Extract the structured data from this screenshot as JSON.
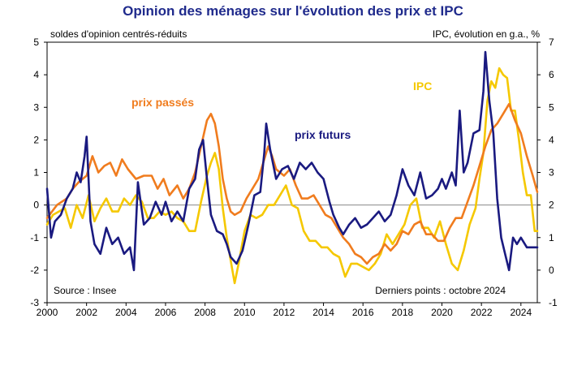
{
  "chart_data": {
    "type": "line",
    "title": "Opinion des ménages sur l'évolution des prix et IPC",
    "ylabel_left": "soldes d'opinion centrés-réduits",
    "ylabel_right": "IPC, évolution en g.a., %",
    "source": "Source : Insee",
    "last_point_note": "Derniers points : octobre 2024",
    "ylim_left": [
      -3,
      5
    ],
    "ylim_right": [
      -1,
      7
    ],
    "xlim": [
      2000,
      2024.83
    ],
    "x_ticks": [
      "2000",
      "2002",
      "2004",
      "2006",
      "2008",
      "2010",
      "2012",
      "2014",
      "2016",
      "2018",
      "2020",
      "2022",
      "2024"
    ],
    "y_ticks_left": [
      "5",
      "4",
      "3",
      "2",
      "1",
      "0",
      "-1",
      "-2",
      "-3"
    ],
    "y_ticks_right": [
      "7",
      "6",
      "5",
      "4",
      "3",
      "2",
      "1",
      "0",
      "-1"
    ],
    "colors": {
      "title": "#1f2a8c",
      "prix_passes": "#f07c1e",
      "prix_futurs": "#1a1a80",
      "ipc": "#f5c800"
    },
    "series": [
      {
        "name": "prix passés",
        "axis": "left",
        "x": [
          2000.0,
          2000.5,
          2001.0,
          2001.3,
          2001.6,
          2002.0,
          2002.3,
          2002.6,
          2002.9,
          2003.2,
          2003.5,
          2003.8,
          2004.1,
          2004.5,
          2004.9,
          2005.3,
          2005.6,
          2005.9,
          2006.2,
          2006.6,
          2006.9,
          2007.2,
          2007.5,
          2007.8,
          2008.1,
          2008.3,
          2008.5,
          2008.7,
          2008.9,
          2009.1,
          2009.3,
          2009.5,
          2009.8,
          2010.1,
          2010.4,
          2010.7,
          2011.0,
          2011.2,
          2011.4,
          2011.6,
          2011.8,
          2012.0,
          2012.3,
          2012.6,
          2012.9,
          2013.2,
          2013.5,
          2013.8,
          2014.1,
          2014.4,
          2014.7,
          2015.0,
          2015.3,
          2015.6,
          2015.9,
          2016.2,
          2016.5,
          2016.8,
          2017.1,
          2017.4,
          2017.7,
          2018.0,
          2018.3,
          2018.6,
          2018.9,
          2019.2,
          2019.5,
          2019.8,
          2020.1,
          2020.4,
          2020.7,
          2021.0,
          2021.3,
          2021.6,
          2021.9,
          2022.2,
          2022.5,
          2022.8,
          2023.1,
          2023.4,
          2023.7,
          2024.0,
          2024.3,
          2024.6,
          2024.83
        ],
        "values": [
          -0.4,
          0.0,
          0.2,
          0.5,
          0.7,
          0.9,
          1.5,
          1.0,
          1.2,
          1.3,
          0.9,
          1.4,
          1.1,
          0.8,
          0.9,
          0.9,
          0.5,
          0.8,
          0.3,
          0.6,
          0.2,
          0.5,
          1.0,
          1.8,
          2.6,
          2.8,
          2.5,
          1.8,
          0.8,
          0.2,
          -0.2,
          -0.3,
          -0.2,
          0.2,
          0.5,
          0.8,
          1.4,
          1.8,
          1.5,
          1.1,
          1.0,
          0.9,
          1.1,
          0.6,
          0.2,
          0.2,
          0.3,
          0.0,
          -0.3,
          -0.4,
          -0.7,
          -1.0,
          -1.2,
          -1.5,
          -1.6,
          -1.8,
          -1.6,
          -1.5,
          -1.2,
          -1.4,
          -1.2,
          -0.8,
          -0.9,
          -0.6,
          -0.5,
          -0.9,
          -0.9,
          -1.1,
          -1.1,
          -0.7,
          -0.4,
          -0.4,
          0.1,
          0.6,
          1.2,
          1.8,
          2.3,
          2.5,
          2.8,
          3.1,
          2.6,
          2.2,
          1.5,
          0.9,
          0.4
        ]
      },
      {
        "name": "prix futurs",
        "axis": "left",
        "x": [
          2000.0,
          2000.2,
          2000.4,
          2000.7,
          2001.0,
          2001.3,
          2001.5,
          2001.7,
          2001.9,
          2002.0,
          2002.2,
          2002.4,
          2002.7,
          2003.0,
          2003.3,
          2003.6,
          2003.9,
          2004.2,
          2004.4,
          2004.6,
          2004.9,
          2005.2,
          2005.5,
          2005.8,
          2006.0,
          2006.3,
          2006.6,
          2006.9,
          2007.2,
          2007.5,
          2007.7,
          2007.9,
          2008.1,
          2008.3,
          2008.6,
          2008.9,
          2009.1,
          2009.3,
          2009.6,
          2009.9,
          2010.2,
          2010.5,
          2010.8,
          2011.0,
          2011.1,
          2011.3,
          2011.6,
          2011.9,
          2012.2,
          2012.5,
          2012.8,
          2013.1,
          2013.4,
          2013.7,
          2014.0,
          2014.3,
          2014.5,
          2014.8,
          2015.0,
          2015.3,
          2015.6,
          2015.9,
          2016.2,
          2016.5,
          2016.8,
          2017.1,
          2017.4,
          2017.7,
          2018.0,
          2018.3,
          2018.6,
          2018.9,
          2019.2,
          2019.5,
          2019.8,
          2020.0,
          2020.2,
          2020.5,
          2020.7,
          2020.9,
          2021.1,
          2021.3,
          2021.6,
          2021.9,
          2022.1,
          2022.2,
          2022.4,
          2022.6,
          2022.8,
          2023.0,
          2023.2,
          2023.4,
          2023.6,
          2023.8,
          2024.0,
          2024.3,
          2024.6,
          2024.83
        ],
        "values": [
          0.5,
          -1.0,
          -0.5,
          -0.3,
          0.2,
          0.5,
          1.0,
          0.7,
          1.5,
          2.1,
          -0.5,
          -1.2,
          -1.5,
          -0.7,
          -1.2,
          -1.0,
          -1.5,
          -1.3,
          -2.0,
          0.7,
          -0.6,
          -0.4,
          0.1,
          -0.3,
          0.1,
          -0.5,
          -0.2,
          -0.5,
          0.5,
          0.8,
          1.7,
          2.0,
          0.8,
          -0.3,
          -0.8,
          -0.9,
          -1.2,
          -1.6,
          -1.8,
          -1.4,
          -0.6,
          0.3,
          0.4,
          1.6,
          2.5,
          1.7,
          0.8,
          1.1,
          1.2,
          0.8,
          1.3,
          1.1,
          1.3,
          1.0,
          0.8,
          0.1,
          -0.3,
          -0.7,
          -0.9,
          -0.6,
          -0.4,
          -0.7,
          -0.6,
          -0.4,
          -0.2,
          -0.5,
          -0.3,
          0.3,
          1.1,
          0.6,
          0.3,
          1.0,
          0.2,
          0.3,
          0.5,
          0.8,
          0.5,
          1.0,
          0.6,
          2.9,
          1.0,
          1.3,
          2.2,
          2.3,
          3.5,
          4.7,
          3.2,
          2.2,
          0.2,
          -1.0,
          -1.5,
          -2.0,
          -1.0,
          -1.2,
          -1.0,
          -1.3,
          -1.3,
          -1.3
        ]
      },
      {
        "name": "IPC",
        "axis": "right",
        "x": [
          2000.0,
          2000.3,
          2000.6,
          2000.9,
          2001.2,
          2001.5,
          2001.8,
          2002.1,
          2002.4,
          2002.7,
          2003.0,
          2003.3,
          2003.6,
          2003.9,
          2004.2,
          2004.5,
          2004.8,
          2005.1,
          2005.4,
          2005.7,
          2006.0,
          2006.3,
          2006.6,
          2006.9,
          2007.2,
          2007.5,
          2007.8,
          2008.1,
          2008.3,
          2008.5,
          2008.7,
          2008.9,
          2009.1,
          2009.3,
          2009.5,
          2009.7,
          2010.0,
          2010.3,
          2010.6,
          2010.9,
          2011.2,
          2011.5,
          2011.8,
          2012.1,
          2012.4,
          2012.7,
          2013.0,
          2013.3,
          2013.6,
          2013.9,
          2014.2,
          2014.5,
          2014.8,
          2015.1,
          2015.4,
          2015.7,
          2016.0,
          2016.3,
          2016.6,
          2016.9,
          2017.2,
          2017.5,
          2017.8,
          2018.1,
          2018.4,
          2018.7,
          2019.0,
          2019.3,
          2019.6,
          2019.9,
          2020.2,
          2020.5,
          2020.8,
          2021.1,
          2021.4,
          2021.7,
          2021.9,
          2022.1,
          2022.3,
          2022.5,
          2022.7,
          2022.9,
          2023.1,
          2023.3,
          2023.5,
          2023.7,
          2023.9,
          2024.1,
          2024.3,
          2024.5,
          2024.7,
          2024.83
        ],
        "values": [
          1.4,
          1.7,
          1.8,
          1.9,
          1.3,
          2.0,
          1.6,
          2.3,
          1.5,
          1.9,
          2.2,
          1.8,
          1.8,
          2.2,
          2.0,
          2.3,
          2.1,
          1.6,
          1.6,
          1.8,
          1.7,
          1.8,
          1.6,
          1.5,
          1.2,
          1.2,
          2.1,
          2.9,
          3.3,
          3.6,
          3.1,
          1.9,
          1.0,
          0.3,
          -0.4,
          0.2,
          1.2,
          1.7,
          1.6,
          1.7,
          2.0,
          2.0,
          2.3,
          2.6,
          2.0,
          1.9,
          1.2,
          0.9,
          0.9,
          0.7,
          0.7,
          0.5,
          0.4,
          -0.2,
          0.2,
          0.2,
          0.1,
          0.0,
          0.2,
          0.5,
          1.1,
          0.8,
          1.1,
          1.4,
          2.0,
          2.2,
          1.3,
          1.3,
          1.0,
          1.5,
          0.8,
          0.2,
          0.0,
          0.6,
          1.4,
          1.9,
          2.8,
          3.6,
          5.2,
          5.8,
          5.6,
          6.2,
          6.0,
          5.9,
          4.9,
          4.9,
          4.0,
          3.0,
          2.3,
          2.3,
          1.2,
          1.2
        ]
      }
    ],
    "labels": {
      "prix_passes": "prix passés",
      "prix_futurs": "prix futurs",
      "ipc": "IPC"
    }
  }
}
